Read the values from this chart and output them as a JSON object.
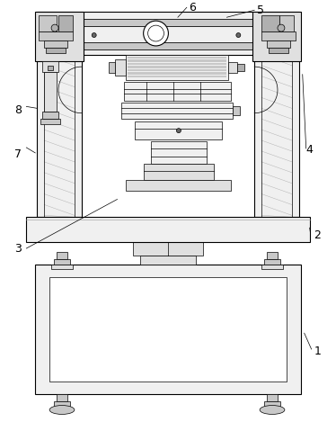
{
  "background_color": "#ffffff",
  "line_color": "#000000",
  "figsize": [
    3.74,
    4.79
  ],
  "dpi": 100,
  "fc_white": "#ffffff",
  "fc_light": "#f0f0f0",
  "fc_med": "#e0e0e0",
  "fc_dark": "#c8c8c8",
  "fc_darker": "#b0b0b0",
  "fc_hatch": "#d8d8d8"
}
